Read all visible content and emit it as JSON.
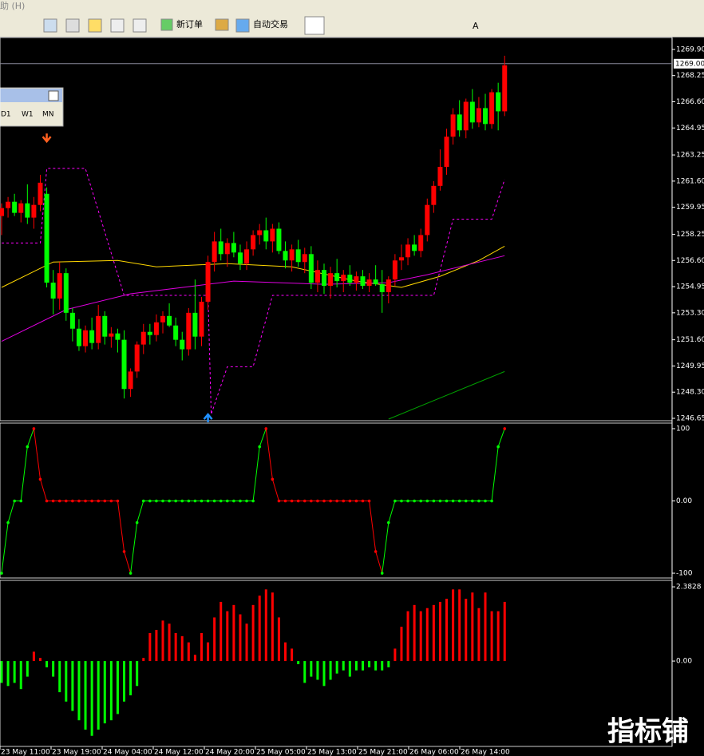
{
  "menu": "助 (H)",
  "toolbar": {
    "new_order": "新订单",
    "auto_trade": "自动交易",
    "text_tool": "A"
  },
  "period_box": [
    "D1",
    "W1",
    "MN"
  ],
  "watermark": "指标铺",
  "price_chart": {
    "ylim": [
      1246.5,
      1270.65
    ],
    "yticks": [
      {
        "value": 1269.9,
        "label": "1269.90"
      },
      {
        "value": 1268.25,
        "label": "1268.25"
      },
      {
        "value": 1266.6,
        "label": "1266.60"
      },
      {
        "value": 1264.95,
        "label": "1264.95"
      },
      {
        "value": 1263.25,
        "label": "1263.25"
      },
      {
        "value": 1261.6,
        "label": "1261.60"
      },
      {
        "value": 1259.95,
        "label": "1259.95"
      },
      {
        "value": 1258.25,
        "label": "1258.25"
      },
      {
        "value": 1256.6,
        "label": "1256.60"
      },
      {
        "value": 1254.95,
        "label": "1254.95"
      },
      {
        "value": 1253.3,
        "label": "1253.30"
      },
      {
        "value": 1251.6,
        "label": "1251.60"
      },
      {
        "value": 1249.95,
        "label": "1249.95"
      },
      {
        "value": 1248.3,
        "label": "1248.30"
      },
      {
        "value": 1246.65,
        "label": "1246.65"
      }
    ],
    "current_price": {
      "value": 1269,
      "label": "1269.00"
    },
    "up_color": "#ff0000",
    "down_color": "#00ff00",
    "candles": [
      [
        1259.4,
        1260.2,
        1258.2,
        1259.9
      ],
      [
        1259.9,
        1260.6,
        1259.3,
        1260.3
      ],
      [
        1260.3,
        1260.8,
        1259.4,
        1259.6
      ],
      [
        1259.6,
        1260.4,
        1259.0,
        1260.2
      ],
      [
        1260.2,
        1261.4,
        1258.9,
        1259.3
      ],
      [
        1259.3,
        1260.6,
        1258.6,
        1260.1
      ],
      [
        1260.1,
        1262.0,
        1259.7,
        1261.5
      ],
      [
        1260.8,
        1261.2,
        1254.9,
        1255.2
      ],
      [
        1255.2,
        1256.0,
        1253.2,
        1254.2
      ],
      [
        1254.2,
        1256.5,
        1253.5,
        1255.8
      ],
      [
        1255.8,
        1256.1,
        1252.8,
        1253.3
      ],
      [
        1253.3,
        1253.6,
        1251.5,
        1252.3
      ],
      [
        1252.3,
        1252.9,
        1250.9,
        1251.2
      ],
      [
        1251.2,
        1252.5,
        1250.8,
        1252.2
      ],
      [
        1252.2,
        1253.0,
        1251.0,
        1251.4
      ],
      [
        1251.4,
        1253.8,
        1251.0,
        1253.1
      ],
      [
        1253.1,
        1253.4,
        1251.3,
        1251.8
      ],
      [
        1251.8,
        1252.4,
        1251.1,
        1252.0
      ],
      [
        1252.0,
        1252.3,
        1250.8,
        1251.6
      ],
      [
        1251.6,
        1252.2,
        1247.9,
        1248.5
      ],
      [
        1248.5,
        1249.8,
        1248.0,
        1249.6
      ],
      [
        1249.6,
        1251.5,
        1249.2,
        1251.3
      ],
      [
        1251.3,
        1252.6,
        1250.7,
        1252.1
      ],
      [
        1252.1,
        1252.6,
        1251.3,
        1251.9
      ],
      [
        1251.9,
        1253.2,
        1251.5,
        1252.7
      ],
      [
        1252.7,
        1253.4,
        1252.0,
        1253.1
      ],
      [
        1253.1,
        1253.9,
        1252.4,
        1252.5
      ],
      [
        1252.5,
        1253.0,
        1251.2,
        1251.6
      ],
      [
        1251.6,
        1252.1,
        1250.3,
        1251.0
      ],
      [
        1251.0,
        1253.6,
        1250.6,
        1253.3
      ],
      [
        1253.3,
        1255.4,
        1251.0,
        1251.8
      ],
      [
        1251.8,
        1254.3,
        1251.2,
        1254.0
      ],
      [
        1254.0,
        1256.9,
        1253.5,
        1256.5
      ],
      [
        1256.5,
        1258.4,
        1255.9,
        1257.8
      ],
      [
        1257.8,
        1258.6,
        1256.6,
        1257.0
      ],
      [
        1257.0,
        1258.0,
        1256.2,
        1257.7
      ],
      [
        1257.7,
        1258.4,
        1256.8,
        1257.1
      ],
      [
        1257.1,
        1257.6,
        1256.0,
        1256.4
      ],
      [
        1256.4,
        1257.8,
        1256.0,
        1257.3
      ],
      [
        1257.3,
        1258.5,
        1256.9,
        1258.2
      ],
      [
        1258.2,
        1258.9,
        1257.6,
        1258.5
      ],
      [
        1258.5,
        1259.3,
        1257.3,
        1257.8
      ],
      [
        1257.8,
        1258.9,
        1257.1,
        1258.6
      ],
      [
        1258.6,
        1259.0,
        1257.0,
        1257.2
      ],
      [
        1257.2,
        1257.8,
        1256.1,
        1256.6
      ],
      [
        1256.6,
        1257.6,
        1255.9,
        1257.3
      ],
      [
        1257.3,
        1257.9,
        1256.2,
        1256.5
      ],
      [
        1256.5,
        1257.4,
        1255.8,
        1257.0
      ],
      [
        1257.0,
        1257.5,
        1254.8,
        1255.2
      ],
      [
        1255.2,
        1256.6,
        1254.6,
        1256.0
      ],
      [
        1256.0,
        1256.4,
        1254.5,
        1255.0
      ],
      [
        1255.0,
        1256.2,
        1254.2,
        1255.8
      ],
      [
        1255.8,
        1256.7,
        1254.9,
        1255.3
      ],
      [
        1255.3,
        1256.0,
        1254.6,
        1255.7
      ],
      [
        1255.7,
        1256.3,
        1255.0,
        1255.2
      ],
      [
        1255.2,
        1255.9,
        1254.7,
        1255.6
      ],
      [
        1255.6,
        1256.0,
        1254.8,
        1255.0
      ],
      [
        1255.0,
        1255.8,
        1254.6,
        1255.4
      ],
      [
        1255.4,
        1256.3,
        1255.0,
        1255.1
      ],
      [
        1255.1,
        1256.0,
        1253.3,
        1254.6
      ],
      [
        1254.6,
        1255.6,
        1253.9,
        1255.4
      ],
      [
        1255.4,
        1257.0,
        1255.0,
        1256.6
      ],
      [
        1256.6,
        1257.6,
        1256.0,
        1256.8
      ],
      [
        1256.8,
        1258.0,
        1256.3,
        1257.6
      ],
      [
        1257.6,
        1258.2,
        1256.9,
        1257.2
      ],
      [
        1257.2,
        1258.6,
        1256.8,
        1258.2
      ],
      [
        1258.2,
        1260.5,
        1257.8,
        1260.1
      ],
      [
        1260.1,
        1261.6,
        1259.6,
        1261.3
      ],
      [
        1261.3,
        1263.6,
        1261.0,
        1262.5
      ],
      [
        1262.5,
        1264.9,
        1262.0,
        1264.4
      ],
      [
        1264.4,
        1266.2,
        1263.9,
        1265.8
      ],
      [
        1265.8,
        1266.7,
        1264.4,
        1264.8
      ],
      [
        1264.8,
        1266.8,
        1264.3,
        1266.6
      ],
      [
        1266.6,
        1267.4,
        1264.9,
        1265.3
      ],
      [
        1265.3,
        1266.9,
        1265.0,
        1266.2
      ],
      [
        1266.2,
        1267.1,
        1264.8,
        1265.2
      ],
      [
        1265.2,
        1267.4,
        1264.9,
        1267.2
      ],
      [
        1267.2,
        1267.8,
        1264.8,
        1266.0
      ],
      [
        1266.0,
        1269.5,
        1265.7,
        1268.9
      ]
    ],
    "lines": [
      {
        "color": "#ff00ff",
        "dashed": true,
        "points": [
          [
            0,
            1257.7
          ],
          [
            6,
            1257.7
          ],
          [
            7,
            1262.4
          ],
          [
            13,
            1262.4
          ],
          [
            19,
            1254.4
          ],
          [
            32,
            1254.4
          ],
          [
            32.5,
            1246.9
          ],
          [
            35,
            1249.9
          ],
          [
            39,
            1249.9
          ],
          [
            42,
            1254.4
          ],
          [
            67,
            1254.4
          ],
          [
            70,
            1259.2
          ],
          [
            76,
            1259.2
          ],
          [
            78,
            1261.7
          ]
        ]
      },
      {
        "color": "#ffd700",
        "dashed": false,
        "points": [
          [
            0,
            1254.9
          ],
          [
            8,
            1256.5
          ],
          [
            18,
            1256.6
          ],
          [
            24,
            1256.2
          ],
          [
            35,
            1256.4
          ],
          [
            45,
            1256.2
          ],
          [
            55,
            1255.3
          ],
          [
            62,
            1254.9
          ],
          [
            68,
            1255.6
          ],
          [
            74,
            1256.6
          ],
          [
            78,
            1257.5
          ]
        ]
      },
      {
        "color": "#e000e0",
        "dashed": false,
        "points": [
          [
            0,
            1251.5
          ],
          [
            10,
            1253.5
          ],
          [
            20,
            1254.5
          ],
          [
            30,
            1255.0
          ],
          [
            36,
            1255.3
          ],
          [
            50,
            1255.1
          ],
          [
            60,
            1255.2
          ],
          [
            66,
            1255.7
          ],
          [
            72,
            1256.3
          ],
          [
            78,
            1256.9
          ]
        ]
      },
      {
        "color": "#00a000",
        "dashed": false,
        "points": [
          [
            60,
            1246.6
          ],
          [
            78,
            1249.6
          ]
        ]
      }
    ],
    "arrows": [
      {
        "index": 7,
        "price": 1264.2,
        "dir": "down",
        "color": "#ff6020"
      },
      {
        "index": 32,
        "price": 1246.8,
        "dir": "up",
        "color": "#2090ff"
      }
    ]
  },
  "oscillator": {
    "ylim": [
      -106.6,
      107.7
    ],
    "yticks": [
      100,
      {
        "value": 0,
        "label": "0.00"
      },
      -100
    ],
    "values": [
      -100,
      -30,
      0,
      0,
      75,
      100,
      30,
      0,
      0,
      0,
      0,
      0,
      0,
      0,
      0,
      0,
      0,
      0,
      0,
      -70,
      -100,
      -30,
      0,
      0,
      0,
      0,
      0,
      0,
      0,
      0,
      0,
      0,
      0,
      0,
      0,
      0,
      0,
      0,
      0,
      0,
      75,
      100,
      30,
      0,
      0,
      0,
      0,
      0,
      0,
      0,
      0,
      0,
      0,
      0,
      0,
      0,
      0,
      0,
      -70,
      -100,
      -30,
      0,
      0,
      0,
      0,
      0,
      0,
      0,
      0,
      0,
      0,
      0,
      0,
      0,
      0,
      0,
      0,
      75,
      100
    ]
  },
  "histogram": {
    "ylim": [
      -2.74,
      2.59
    ],
    "yticks": [
      2.3828,
      {
        "value": 0,
        "label": "0.00"
      }
    ],
    "values": [
      -0.7,
      -0.8,
      -0.7,
      -0.9,
      -0.5,
      0.3,
      0.1,
      -0.2,
      -0.5,
      -1.0,
      -1.3,
      -1.6,
      -1.9,
      -2.2,
      -2.4,
      -2.2,
      -2.0,
      -1.9,
      -1.7,
      -1.3,
      -1.1,
      -0.8,
      0.1,
      0.9,
      1.0,
      1.3,
      1.2,
      0.9,
      0.8,
      0.6,
      0.2,
      0.9,
      0.6,
      1.4,
      1.9,
      1.6,
      1.8,
      1.5,
      1.2,
      1.8,
      2.1,
      2.3,
      2.2,
      1.4,
      0.6,
      0.4,
      -0.1,
      -0.7,
      -0.5,
      -0.6,
      -0.8,
      -0.6,
      -0.4,
      -0.3,
      -0.5,
      -0.3,
      -0.3,
      -0.2,
      -0.3,
      -0.3,
      -0.2,
      0.4,
      1.1,
      1.6,
      1.8,
      1.6,
      1.7,
      1.8,
      1.9,
      2.0,
      2.3,
      2.3,
      2.0,
      2.2,
      1.7,
      2.2,
      1.6,
      1.6,
      1.9
    ]
  },
  "time_axis": [
    "23 May 11:00",
    "23 May 19:00",
    "24 May 04:00",
    "24 May 12:00",
    "24 May 20:00",
    "25 May 05:00",
    "25 May 13:00",
    "25 May 21:00",
    "26 May 06:00",
    "26 May 14:00"
  ]
}
